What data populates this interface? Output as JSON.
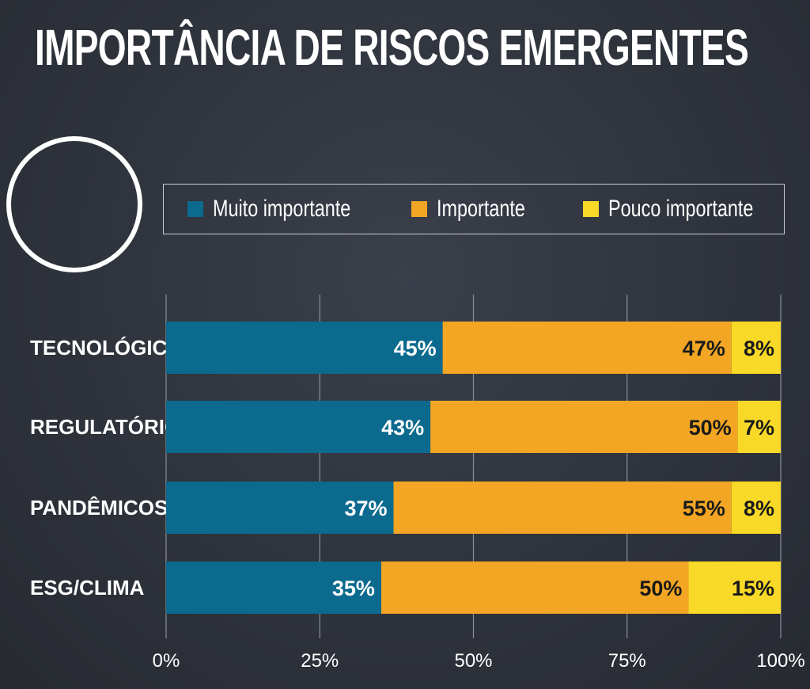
{
  "title": "IMPORTÂNCIA DE RISCOS EMERGENTES",
  "legend": [
    {
      "label": "Muito importante",
      "color": "#0b6a8e"
    },
    {
      "label": "Importante",
      "color": "#f2a623"
    },
    {
      "label": "Pouco importante",
      "color": "#f9d928"
    }
  ],
  "chart_data": {
    "type": "bar",
    "orientation": "horizontal",
    "stacked": true,
    "categories": [
      "TECNOLÓGICOS",
      "REGULATÓRIOS",
      "PANDÊMICOS",
      "ESG/CLIMA"
    ],
    "series": [
      {
        "name": "Muito importante",
        "color": "#0b6a8e",
        "values": [
          45,
          43,
          37,
          35
        ],
        "labels": [
          "45%",
          "43%",
          "37%",
          "35%"
        ]
      },
      {
        "name": "Importante",
        "color": "#f2a623",
        "values": [
          47,
          50,
          55,
          50
        ],
        "labels": [
          "47%",
          "50%",
          "55%",
          "50%"
        ]
      },
      {
        "name": "Pouco importante",
        "color": "#f9d928",
        "values": [
          8,
          7,
          8,
          15
        ],
        "labels": [
          "8%",
          "7%",
          "8%",
          "15%"
        ]
      }
    ],
    "xlim": [
      0,
      100
    ],
    "xticks": [
      "0%",
      "25%",
      "50%",
      "75%",
      "100%"
    ],
    "grid": true,
    "legend_position": "top"
  }
}
